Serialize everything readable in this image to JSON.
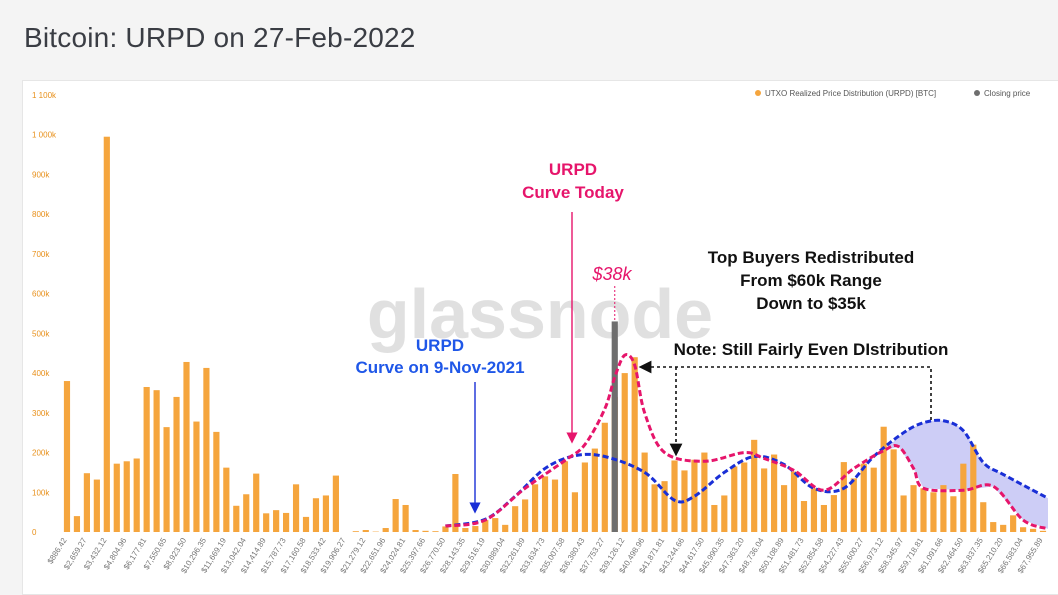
{
  "page": {
    "title": "Bitcoin: URPD on 27-Feb-2022"
  },
  "watermark": "glassnode",
  "colors": {
    "bars": "#f5a53d",
    "closing": "#6e6e6e",
    "today_curve": "#e6156b",
    "nov_curve": "#1a2fd6",
    "nov_fill": "#b8b8f2",
    "nov_label": "#1f57e8"
  },
  "legend": [
    {
      "label": "UTXO Realized Price Distribution (URPD) [BTC]",
      "color": "#f5a53d"
    },
    {
      "label": "Closing price",
      "color": "#6e6e6e"
    }
  ],
  "annotations": {
    "today_title": "URPD",
    "today_sub": "Curve Today",
    "price_tag": "$38k",
    "nov_title": "URPD",
    "nov_sub": "Curve on 9-Nov-2021",
    "top_line1": "Top Buyers Redistributed",
    "top_line2": "From $60k Range",
    "top_line3": "Down to $35k",
    "note": "Note: Still Fairly Even DIstribution"
  },
  "chart_data": {
    "type": "bar",
    "title": "",
    "xlabel": "",
    "ylabel": "",
    "ylim": [
      0,
      1100000
    ],
    "yticks": [
      0,
      100000,
      200000,
      300000,
      400000,
      500000,
      600000,
      700000,
      800000,
      900000,
      1000000,
      1100000
    ],
    "ytick_labels": [
      "0",
      "100k",
      "200k",
      "300k",
      "400k",
      "500k",
      "600k",
      "700k",
      "800k",
      "900k",
      "1 000k",
      "1 100k"
    ],
    "xtick_labels": [
      "$886.42",
      "$2,659.27",
      "$3,432.12",
      "$4,804.96",
      "$6,177.81",
      "$7,550.65",
      "$8,923.50",
      "$10,296.35",
      "$11,669.19",
      "$13,042.04",
      "$14,414.89",
      "$15,787.73",
      "$17,160.58",
      "$18,533.42",
      "$19,906.27",
      "$21,279.12",
      "$22,651.96",
      "$24,024.81",
      "$25,397.66",
      "$26,770.50",
      "$28,143.35",
      "$29,516.19",
      "$30,889.04",
      "$32,261.89",
      "$33,634.73",
      "$35,007.58",
      "$36,380.43",
      "$37,753.27",
      "$39,126.12",
      "$40,498.96",
      "$41,871.81",
      "$43,244.66",
      "$44,617.50",
      "$45,990.35",
      "$47,363.20",
      "$48,736.04",
      "$50,108.89",
      "$51,481.73",
      "$52,854.58",
      "$54,227.43",
      "$55,600.27",
      "$56,973.12",
      "$58,345.97",
      "$59,718.81",
      "$61,091.66",
      "$62,464.50",
      "$63,837.35",
      "$65,210.20",
      "$66,583.04",
      "$67,955.89"
    ],
    "values": [
      380000,
      40000,
      148000,
      132000,
      995000,
      172000,
      178000,
      185000,
      365000,
      357000,
      264000,
      340000,
      428000,
      278000,
      413000,
      252000,
      162000,
      66000,
      95000,
      147000,
      47000,
      55000,
      48000,
      120000,
      38000,
      85000,
      92000,
      142000,
      0,
      2000,
      5000,
      1000,
      10000,
      83000,
      68000,
      5000,
      3000,
      2000,
      14000,
      146000,
      10000,
      15000,
      30000,
      35000,
      18000,
      65000,
      82000,
      120000,
      140000,
      132000,
      178000,
      100000,
      175000,
      210000,
      275000,
      340000,
      400000,
      440000,
      200000,
      120000,
      128000,
      180000,
      155000,
      182000,
      200000,
      68000,
      92000,
      165000,
      175000,
      232000,
      160000,
      195000,
      118000,
      152000,
      78000,
      110000,
      68000,
      93000,
      176000,
      135000,
      172000,
      162000,
      265000,
      208000,
      92000,
      118000,
      110000,
      100000,
      118000,
      90000,
      172000,
      220000,
      75000,
      25000,
      18000,
      42000,
      12000,
      8000,
      3000
    ],
    "closing_price": {
      "x_index": 55,
      "value": 530000,
      "label": "$38k"
    },
    "series_curves": [
      {
        "name": "URPD Curve Today",
        "x": [
          38,
          42,
          46,
          50,
          52,
          54,
          55,
          56,
          57,
          58,
          60,
          64,
          68,
          70,
          73,
          76,
          79,
          82,
          83.5,
          85,
          86,
          90,
          93,
          96,
          98.5
        ],
        "values": [
          15000,
          30000,
          110000,
          180000,
          220000,
          310000,
          390000,
          445000,
          420000,
          300000,
          200000,
          178000,
          200000,
          185000,
          155000,
          105000,
          160000,
          205000,
          215000,
          160000,
          110000,
          105000,
          115000,
          30000,
          8000
        ]
      },
      {
        "name": "URPD Curve on 9-Nov-2021",
        "x": [
          38,
          42,
          45,
          48,
          51,
          54,
          58,
          61,
          63,
          66,
          69,
          72,
          75,
          78,
          81,
          84,
          86,
          88,
          90,
          92,
          94,
          98.5
        ],
        "values": [
          15000,
          32000,
          90000,
          160000,
          192000,
          190000,
          150000,
          80000,
          90000,
          150000,
          190000,
          170000,
          110000,
          110000,
          190000,
          250000,
          275000,
          280000,
          255000,
          175000,
          145000,
          85000
        ]
      }
    ],
    "grid": false,
    "legend_position": "top-right"
  }
}
